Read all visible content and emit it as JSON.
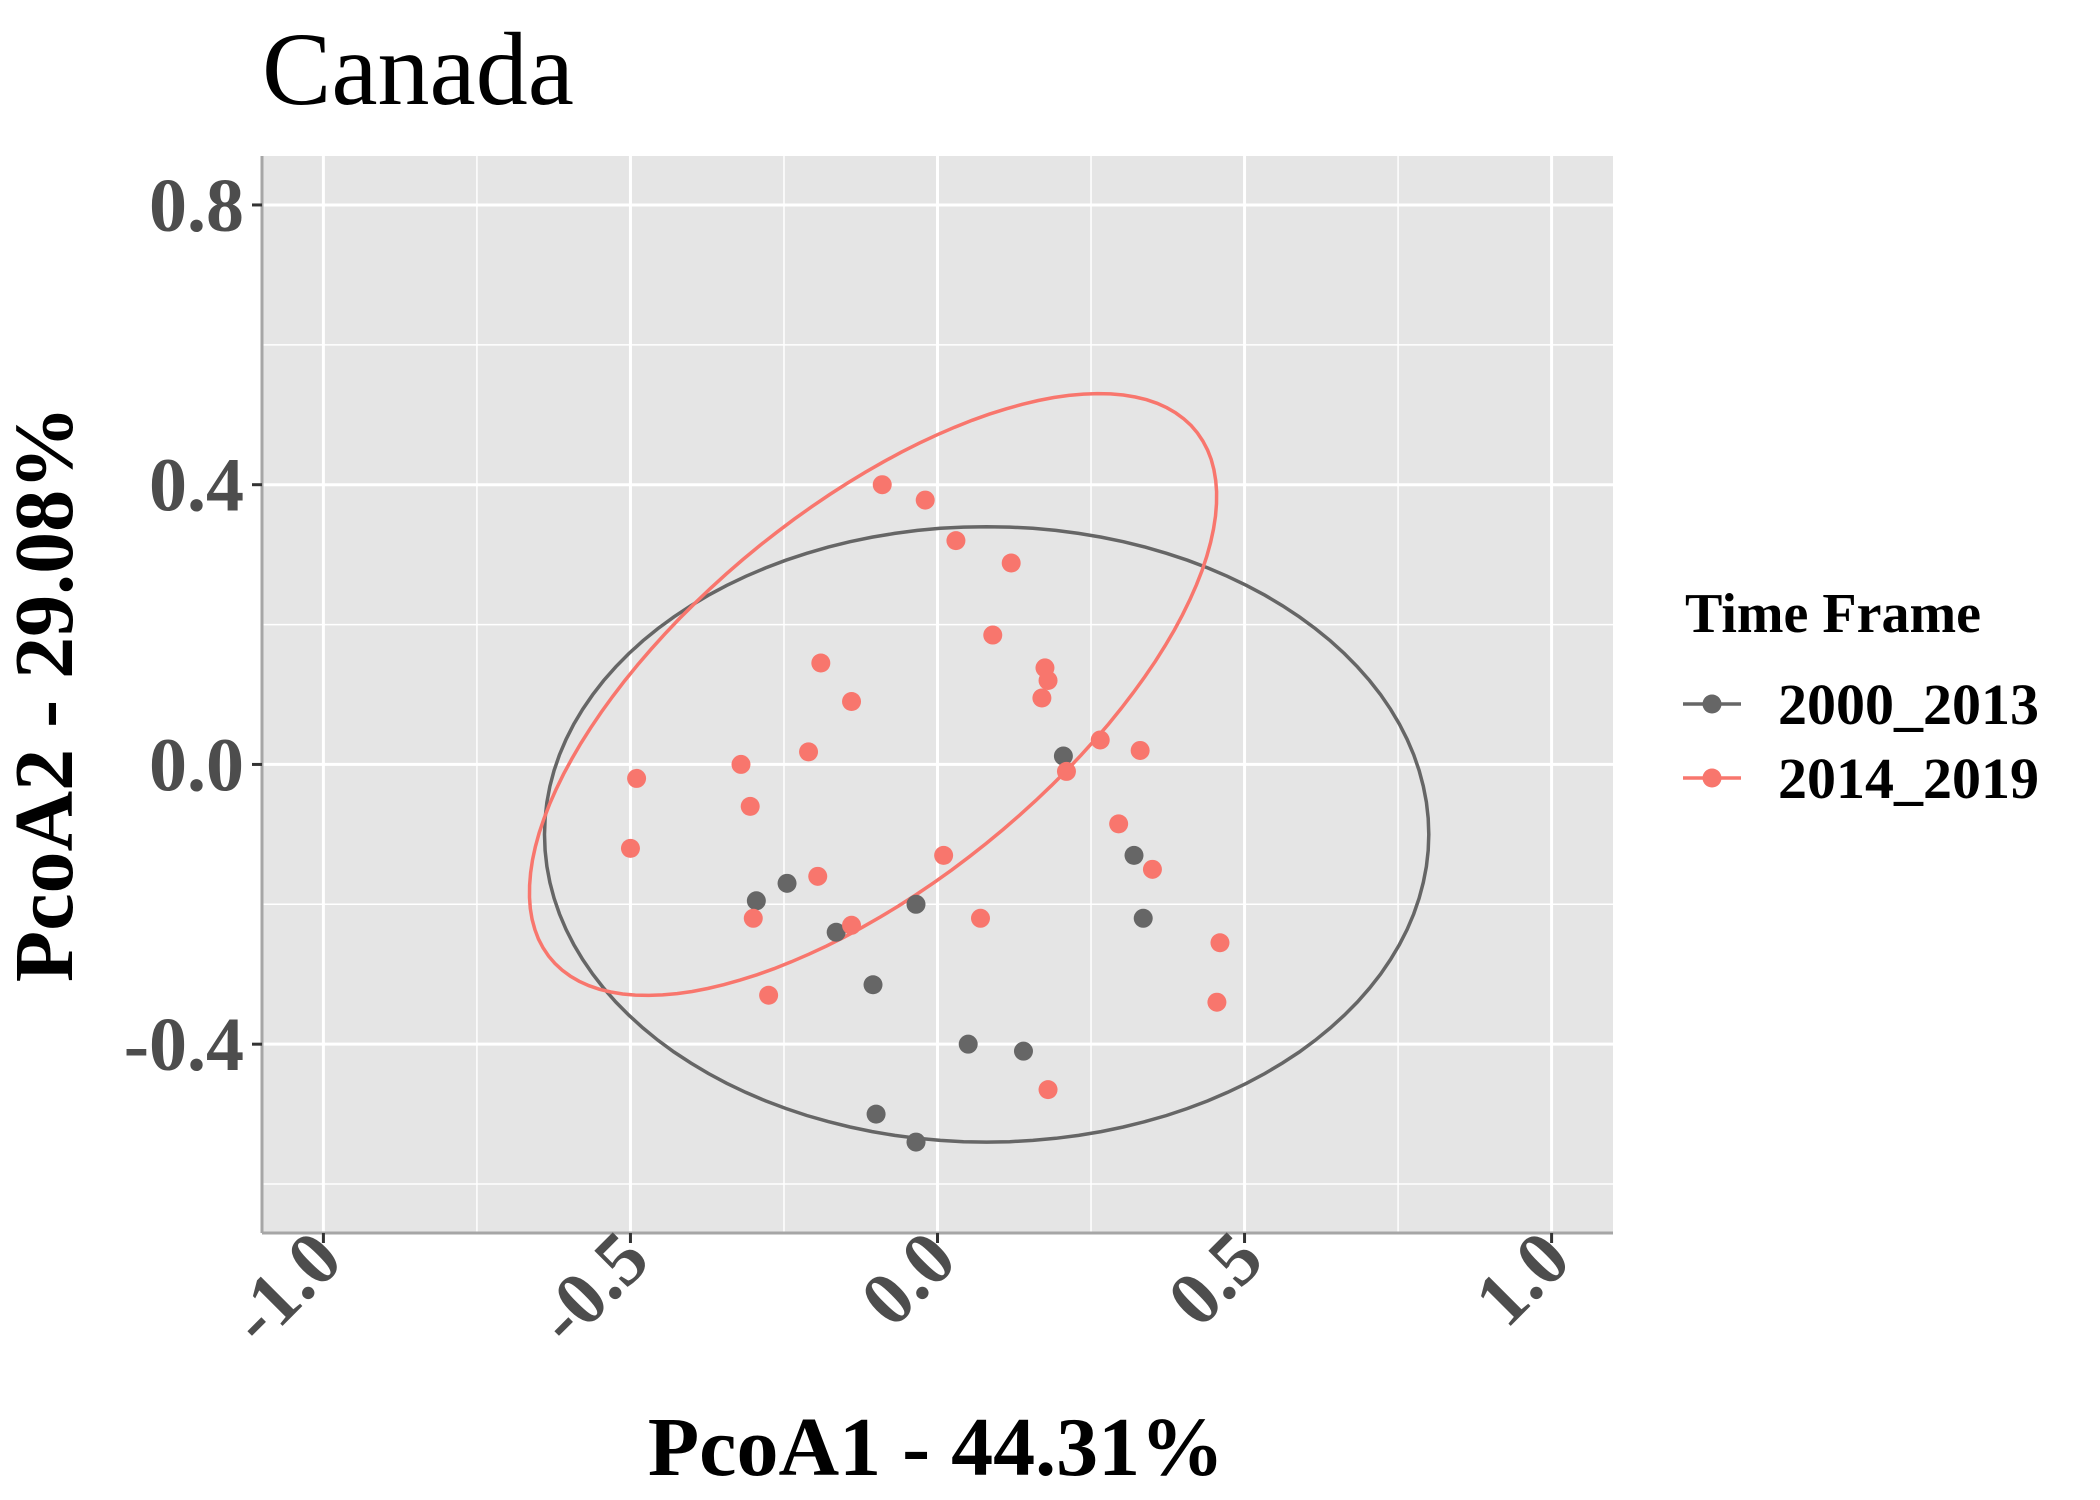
{
  "chart_data": {
    "type": "scatter",
    "title": "Canada",
    "xlabel": "PcoA1 - 44.31%",
    "ylabel": "PcoA2 - 29.08%",
    "xlim": [
      -1.1,
      1.1
    ],
    "ylim": [
      -0.67,
      0.87
    ],
    "x_ticks": [
      -1.0,
      -0.5,
      0.0,
      0.5,
      1.0
    ],
    "x_tick_labels": [
      "-1.0",
      "-0.5",
      "0.0",
      "0.5",
      "1.0"
    ],
    "y_ticks": [
      -0.4,
      0.0,
      0.4,
      0.8
    ],
    "y_tick_labels": [
      "-0.4",
      "0.0",
      "0.4",
      "0.8"
    ],
    "grid": true,
    "legend": {
      "title": "Time Frame",
      "position": "right",
      "entries": [
        "2000_2013",
        "2014_2019"
      ]
    },
    "series": [
      {
        "name": "2000_2013",
        "color": "#666666",
        "points": [
          [
            -0.295,
            -0.195
          ],
          [
            -0.245,
            -0.17
          ],
          [
            -0.165,
            -0.24
          ],
          [
            -0.105,
            -0.315
          ],
          [
            -0.035,
            -0.2
          ],
          [
            0.205,
            0.012
          ],
          [
            0.32,
            -0.13
          ],
          [
            0.335,
            -0.22
          ],
          [
            0.05,
            -0.4
          ],
          [
            0.14,
            -0.41
          ],
          [
            -0.1,
            -0.5
          ],
          [
            -0.035,
            -0.54
          ]
        ],
        "ellipse": {
          "cx": 0.08,
          "cy": -0.1,
          "rx": 0.72,
          "ry": 0.44,
          "angle_deg": 0
        }
      },
      {
        "name": "2014_2019",
        "color": "#f8766d",
        "points": [
          [
            -0.09,
            0.4
          ],
          [
            -0.02,
            0.378
          ],
          [
            0.03,
            0.32
          ],
          [
            0.12,
            0.288
          ],
          [
            0.09,
            0.185
          ],
          [
            0.175,
            0.138
          ],
          [
            0.18,
            0.12
          ],
          [
            0.17,
            0.095
          ],
          [
            -0.19,
            0.145
          ],
          [
            -0.14,
            0.09
          ],
          [
            -0.21,
            0.018
          ],
          [
            -0.32,
            0.0
          ],
          [
            -0.49,
            -0.02
          ],
          [
            -0.305,
            -0.06
          ],
          [
            -0.5,
            -0.12
          ],
          [
            -0.195,
            -0.16
          ],
          [
            0.01,
            -0.13
          ],
          [
            -0.14,
            -0.23
          ],
          [
            -0.3,
            -0.22
          ],
          [
            -0.275,
            -0.33
          ],
          [
            0.07,
            -0.22
          ],
          [
            0.265,
            0.035
          ],
          [
            0.33,
            0.02
          ],
          [
            0.21,
            -0.01
          ],
          [
            0.295,
            -0.085
          ],
          [
            0.35,
            -0.15
          ],
          [
            0.46,
            -0.255
          ],
          [
            0.455,
            -0.34
          ],
          [
            0.18,
            -0.465
          ]
        ],
        "ellipse": {
          "cx": -0.105,
          "cy": 0.1,
          "rx": 0.648,
          "ry": 0.28,
          "angle_deg": 34
        }
      }
    ]
  }
}
